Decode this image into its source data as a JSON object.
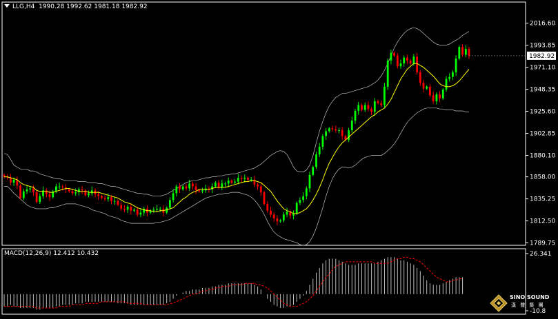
{
  "header": {
    "symbol": "LLG,H4",
    "ohlc": "1990.28 1992.62 1981.18 1982.92"
  },
  "macd_header": {
    "label": "MACD(12,26,9) 12.412 10.432"
  },
  "logo": {
    "name": "SINO SOUND",
    "subtitle": "漢 聲 集 團"
  },
  "colors": {
    "background": "#000000",
    "bull": "#00ff00",
    "bear": "#ff0000",
    "ma": "#ffff00",
    "bands": "#c0c0c0",
    "macd_hist": "#c0c0c0",
    "signal": "#ff0000",
    "axis_text": "#ffffff"
  },
  "chart_data": [
    {
      "type": "candlestick",
      "symbol": "LLG",
      "timeframe": "H4",
      "yticks": [
        "2016.60",
        "1993.85",
        "1971.10",
        "1948.35",
        "1925.60",
        "1902.85",
        "1880.10",
        "1858.00",
        "1835.25",
        "1812.50",
        "1789.75"
      ],
      "ylim": [
        1788,
        2022
      ],
      "current_price": "1982.92",
      "series": {
        "close": [
          1858,
          1857,
          1852,
          1855,
          1849,
          1836,
          1843,
          1845,
          1846,
          1842,
          1832,
          1838,
          1844,
          1840,
          1837,
          1843,
          1848,
          1848,
          1847,
          1845,
          1843,
          1841,
          1842,
          1845,
          1844,
          1839,
          1841,
          1844,
          1840,
          1838,
          1836,
          1835,
          1837,
          1833,
          1833,
          1829,
          1825,
          1824,
          1827,
          1823,
          1824,
          1819,
          1821,
          1825,
          1821,
          1823,
          1824,
          1825,
          1825,
          1821,
          1826,
          1834,
          1841,
          1848,
          1845,
          1848,
          1846,
          1851,
          1848,
          1844,
          1843,
          1844,
          1846,
          1845,
          1848,
          1852,
          1847,
          1851,
          1851,
          1854,
          1852,
          1853,
          1857,
          1856,
          1857,
          1855,
          1855,
          1850,
          1848,
          1842,
          1830,
          1823,
          1819,
          1815,
          1812,
          1813,
          1819,
          1822,
          1818,
          1820,
          1831,
          1834,
          1838,
          1846,
          1860,
          1868,
          1881,
          1889,
          1900,
          1905,
          1908,
          1907,
          1906,
          1906,
          1900,
          1896,
          1906,
          1916,
          1926,
          1932,
          1927,
          1932,
          1928,
          1925,
          1936,
          1934,
          1932,
          1951,
          1978,
          1986,
          1983,
          1972,
          1975,
          1981,
          1978,
          1975,
          1982,
          1966,
          1955,
          1949,
          1951,
          1942,
          1936,
          1943,
          1939,
          1948,
          1959,
          1961,
          1966,
          1980,
          1992,
          1984,
          1990,
          1983
        ],
        "ma": [
          1858,
          1858,
          1857,
          1856,
          1855,
          1852,
          1850,
          1849,
          1848,
          1847,
          1844,
          1843,
          1843,
          1843,
          1842,
          1842,
          1843,
          1844,
          1845,
          1846,
          1846,
          1845,
          1844,
          1843,
          1843,
          1843,
          1842,
          1842,
          1842,
          1842,
          1841,
          1840,
          1839,
          1838,
          1837,
          1836,
          1834,
          1832,
          1831,
          1830,
          1828,
          1826,
          1825,
          1824,
          1823,
          1823,
          1822,
          1822,
          1823,
          1823,
          1824,
          1825,
          1826,
          1829,
          1832,
          1835,
          1837,
          1840,
          1842,
          1843,
          1845,
          1845,
          1845,
          1845,
          1846,
          1847,
          1847,
          1847,
          1847,
          1848,
          1849,
          1850,
          1851,
          1852,
          1853,
          1853,
          1854,
          1854,
          1853,
          1852,
          1849,
          1846,
          1843,
          1838,
          1833,
          1829,
          1825,
          1823,
          1822,
          1820,
          1820,
          1821,
          1823,
          1825,
          1829,
          1834,
          1840,
          1847,
          1855,
          1864,
          1872,
          1878,
          1884,
          1889,
          1893,
          1896,
          1899,
          1902,
          1905,
          1908,
          1911,
          1914,
          1917,
          1920,
          1922,
          1925,
          1927,
          1929,
          1933,
          1938,
          1945,
          1952,
          1959,
          1964,
          1969,
          1972,
          1975,
          1975,
          1973,
          1971,
          1968,
          1965,
          1962,
          1958,
          1954,
          1952,
          1951,
          1951,
          1952,
          1954,
          1957,
          1961,
          1965,
          1969
        ],
        "upper_band": [
          1882,
          1881,
          1876,
          1870,
          1868,
          1866,
          1866,
          1866,
          1864,
          1864,
          1863,
          1861,
          1860,
          1859,
          1858,
          1857,
          1856,
          1856,
          1855,
          1854,
          1854,
          1854,
          1854,
          1853,
          1853,
          1853,
          1852,
          1852,
          1852,
          1851,
          1851,
          1850,
          1849,
          1848,
          1848,
          1847,
          1846,
          1845,
          1844,
          1843,
          1842,
          1841,
          1841,
          1840,
          1840,
          1839,
          1838,
          1838,
          1838,
          1839,
          1840,
          1842,
          1844,
          1846,
          1848,
          1850,
          1852,
          1853,
          1854,
          1854,
          1855,
          1856,
          1857,
          1857,
          1858,
          1858,
          1859,
          1859,
          1860,
          1860,
          1861,
          1861,
          1862,
          1863,
          1864,
          1865,
          1866,
          1867,
          1869,
          1871,
          1874,
          1877,
          1880,
          1882,
          1884,
          1885,
          1884,
          1881,
          1875,
          1868,
          1864,
          1863,
          1863,
          1865,
          1870,
          1880,
          1893,
          1905,
          1915,
          1924,
          1931,
          1936,
          1940,
          1942,
          1944,
          1944,
          1945,
          1946,
          1947,
          1948,
          1949,
          1950,
          1951,
          1953,
          1955,
          1958,
          1962,
          1968,
          1975,
          1983,
          1991,
          1997,
          2002,
          2006,
          2009,
          2011,
          2012,
          2011,
          2009,
          2006,
          2003,
          2000,
          1997,
          1995,
          1994,
          1994,
          1994,
          1995,
          1997,
          1999,
          2001,
          2004,
          2006,
          2008
        ],
        "lower_band": [
          1848,
          1848,
          1845,
          1841,
          1838,
          1835,
          1832,
          1829,
          1827,
          1826,
          1825,
          1825,
          1825,
          1825,
          1826,
          1826,
          1827,
          1828,
          1829,
          1830,
          1830,
          1830,
          1830,
          1829,
          1828,
          1827,
          1826,
          1824,
          1823,
          1822,
          1821,
          1820,
          1818,
          1817,
          1816,
          1815,
          1813,
          1812,
          1811,
          1810,
          1810,
          1810,
          1810,
          1810,
          1810,
          1810,
          1810,
          1811,
          1811,
          1812,
          1813,
          1814,
          1816,
          1818,
          1820,
          1822,
          1824,
          1826,
          1828,
          1830,
          1832,
          1834,
          1836,
          1837,
          1838,
          1839,
          1840,
          1840,
          1841,
          1841,
          1842,
          1842,
          1842,
          1841,
          1840,
          1839,
          1837,
          1834,
          1830,
          1825,
          1819,
          1812,
          1806,
          1801,
          1798,
          1796,
          1794,
          1793,
          1792,
          1791,
          1790,
          1788,
          1787,
          1788,
          1791,
          1797,
          1805,
          1815,
          1826,
          1838,
          1848,
          1856,
          1862,
          1866,
          1868,
          1868,
          1867,
          1868,
          1870,
          1873,
          1876,
          1878,
          1879,
          1880,
          1880,
          1880,
          1880,
          1882,
          1885,
          1888,
          1892,
          1897,
          1903,
          1909,
          1914,
          1918,
          1921,
          1924,
          1926,
          1928,
          1929,
          1929,
          1929,
          1929,
          1928,
          1928,
          1927,
          1927,
          1927,
          1926,
          1926,
          1926,
          1925,
          1925
        ]
      }
    },
    {
      "type": "macd",
      "params": "12,26,9",
      "yticks": [
        "26.341",
        "-10.8"
      ],
      "ylim": [
        -10.8,
        26.341
      ],
      "series": {
        "histogram": [
          -8,
          -8,
          -7,
          -8,
          -8,
          -9,
          -9,
          -9,
          -9,
          -9,
          -10,
          -10,
          -9,
          -9,
          -9,
          -9,
          -8,
          -8,
          -7,
          -7,
          -7,
          -7,
          -6,
          -6,
          -6,
          -5,
          -5,
          -5,
          -5,
          -5,
          -5,
          -5,
          -5,
          -5,
          -5,
          -6,
          -6,
          -6,
          -6,
          -7,
          -7,
          -7,
          -7,
          -7,
          -7,
          -7,
          -7,
          -7,
          -7,
          -7,
          -6,
          -5,
          -3,
          -1,
          0,
          1,
          2,
          2,
          3,
          3,
          3,
          4,
          4,
          4,
          5,
          5,
          6,
          6,
          6,
          7,
          7,
          7,
          7,
          7,
          7,
          7,
          7,
          6,
          5,
          3,
          0,
          -3,
          -5,
          -7,
          -8,
          -9,
          -9,
          -8,
          -8,
          -7,
          -5,
          -3,
          -1,
          2,
          6,
          10,
          14,
          17,
          20,
          22,
          23,
          23,
          23,
          22,
          21,
          20,
          19,
          19,
          19,
          20,
          20,
          20,
          20,
          20,
          20,
          21,
          22,
          23,
          24,
          24,
          24,
          23,
          22,
          22,
          21,
          20,
          19,
          17,
          15,
          12,
          9,
          7,
          6,
          6,
          6,
          7,
          8,
          9,
          10,
          11,
          11,
          11
        ],
        "signal": [
          -8,
          -8,
          -8,
          -8,
          -8,
          -8,
          -8,
          -8,
          -8,
          -8,
          -9,
          -9,
          -9,
          -9,
          -9,
          -9,
          -9,
          -8,
          -8,
          -8,
          -8,
          -7,
          -7,
          -7,
          -7,
          -6,
          -6,
          -6,
          -6,
          -6,
          -5,
          -5,
          -5,
          -5,
          -5,
          -5,
          -5,
          -5,
          -6,
          -6,
          -6,
          -6,
          -6,
          -7,
          -7,
          -7,
          -7,
          -7,
          -7,
          -7,
          -7,
          -6,
          -6,
          -5,
          -4,
          -3,
          -2,
          -1,
          0,
          0,
          1,
          2,
          2,
          3,
          3,
          4,
          4,
          5,
          5,
          5,
          6,
          6,
          6,
          6,
          7,
          7,
          7,
          7,
          6,
          6,
          5,
          4,
          2,
          0,
          -2,
          -4,
          -6,
          -7,
          -8,
          -8,
          -8,
          -7,
          -6,
          -5,
          -3,
          -1,
          2,
          5,
          8,
          11,
          13,
          16,
          18,
          19,
          20,
          21,
          21,
          21,
          21,
          21,
          21,
          21,
          21,
          21,
          20,
          20,
          20,
          20,
          20,
          21,
          22,
          23,
          23,
          24,
          24,
          23,
          23,
          22,
          21,
          19,
          17,
          15,
          13,
          11,
          10,
          9,
          8,
          8,
          9,
          9,
          10,
          10
        ]
      }
    }
  ]
}
